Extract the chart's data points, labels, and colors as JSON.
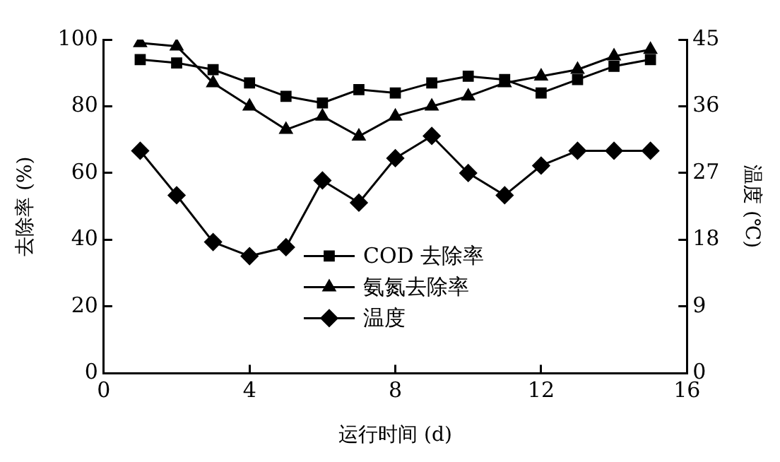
{
  "chart_data": {
    "type": "line",
    "xlabel": "运行时间 (d)",
    "ylabel": "去除率 (%)",
    "y2label": "温度 (℃)",
    "x": [
      1,
      2,
      3,
      4,
      5,
      6,
      7,
      8,
      9,
      10,
      11,
      12,
      13,
      14,
      15
    ],
    "xlim": [
      0,
      16
    ],
    "xticks": [
      0,
      4,
      8,
      12,
      16
    ],
    "ylim": [
      0,
      100
    ],
    "yticks": [
      0,
      20,
      40,
      60,
      80,
      100
    ],
    "y2lim": [
      0,
      45
    ],
    "y2ticks": [
      0,
      9,
      18,
      27,
      36,
      45
    ],
    "series": [
      {
        "name": "COD 去除率",
        "color": "#000000",
        "marker": "square",
        "values": [
          94,
          93,
          91,
          87,
          83,
          81,
          85,
          84,
          87,
          89,
          88,
          84,
          88,
          92,
          94
        ]
      },
      {
        "name": "氨氮去除率",
        "color": "#000000",
        "marker": "triangle",
        "values": [
          99,
          98,
          87,
          80,
          73,
          77,
          71,
          77,
          80,
          83,
          87,
          89,
          91,
          95,
          97
        ]
      },
      {
        "name": "温度",
        "color": "#000000",
        "marker": "diamond",
        "axis": "y2",
        "values": [
          30,
          24,
          17.7,
          15.8,
          17,
          26,
          23,
          29,
          32,
          27,
          24,
          28,
          30,
          30,
          30
        ]
      }
    ],
    "legend": "bottom",
    "grid": false,
    "line_style": "solid"
  }
}
